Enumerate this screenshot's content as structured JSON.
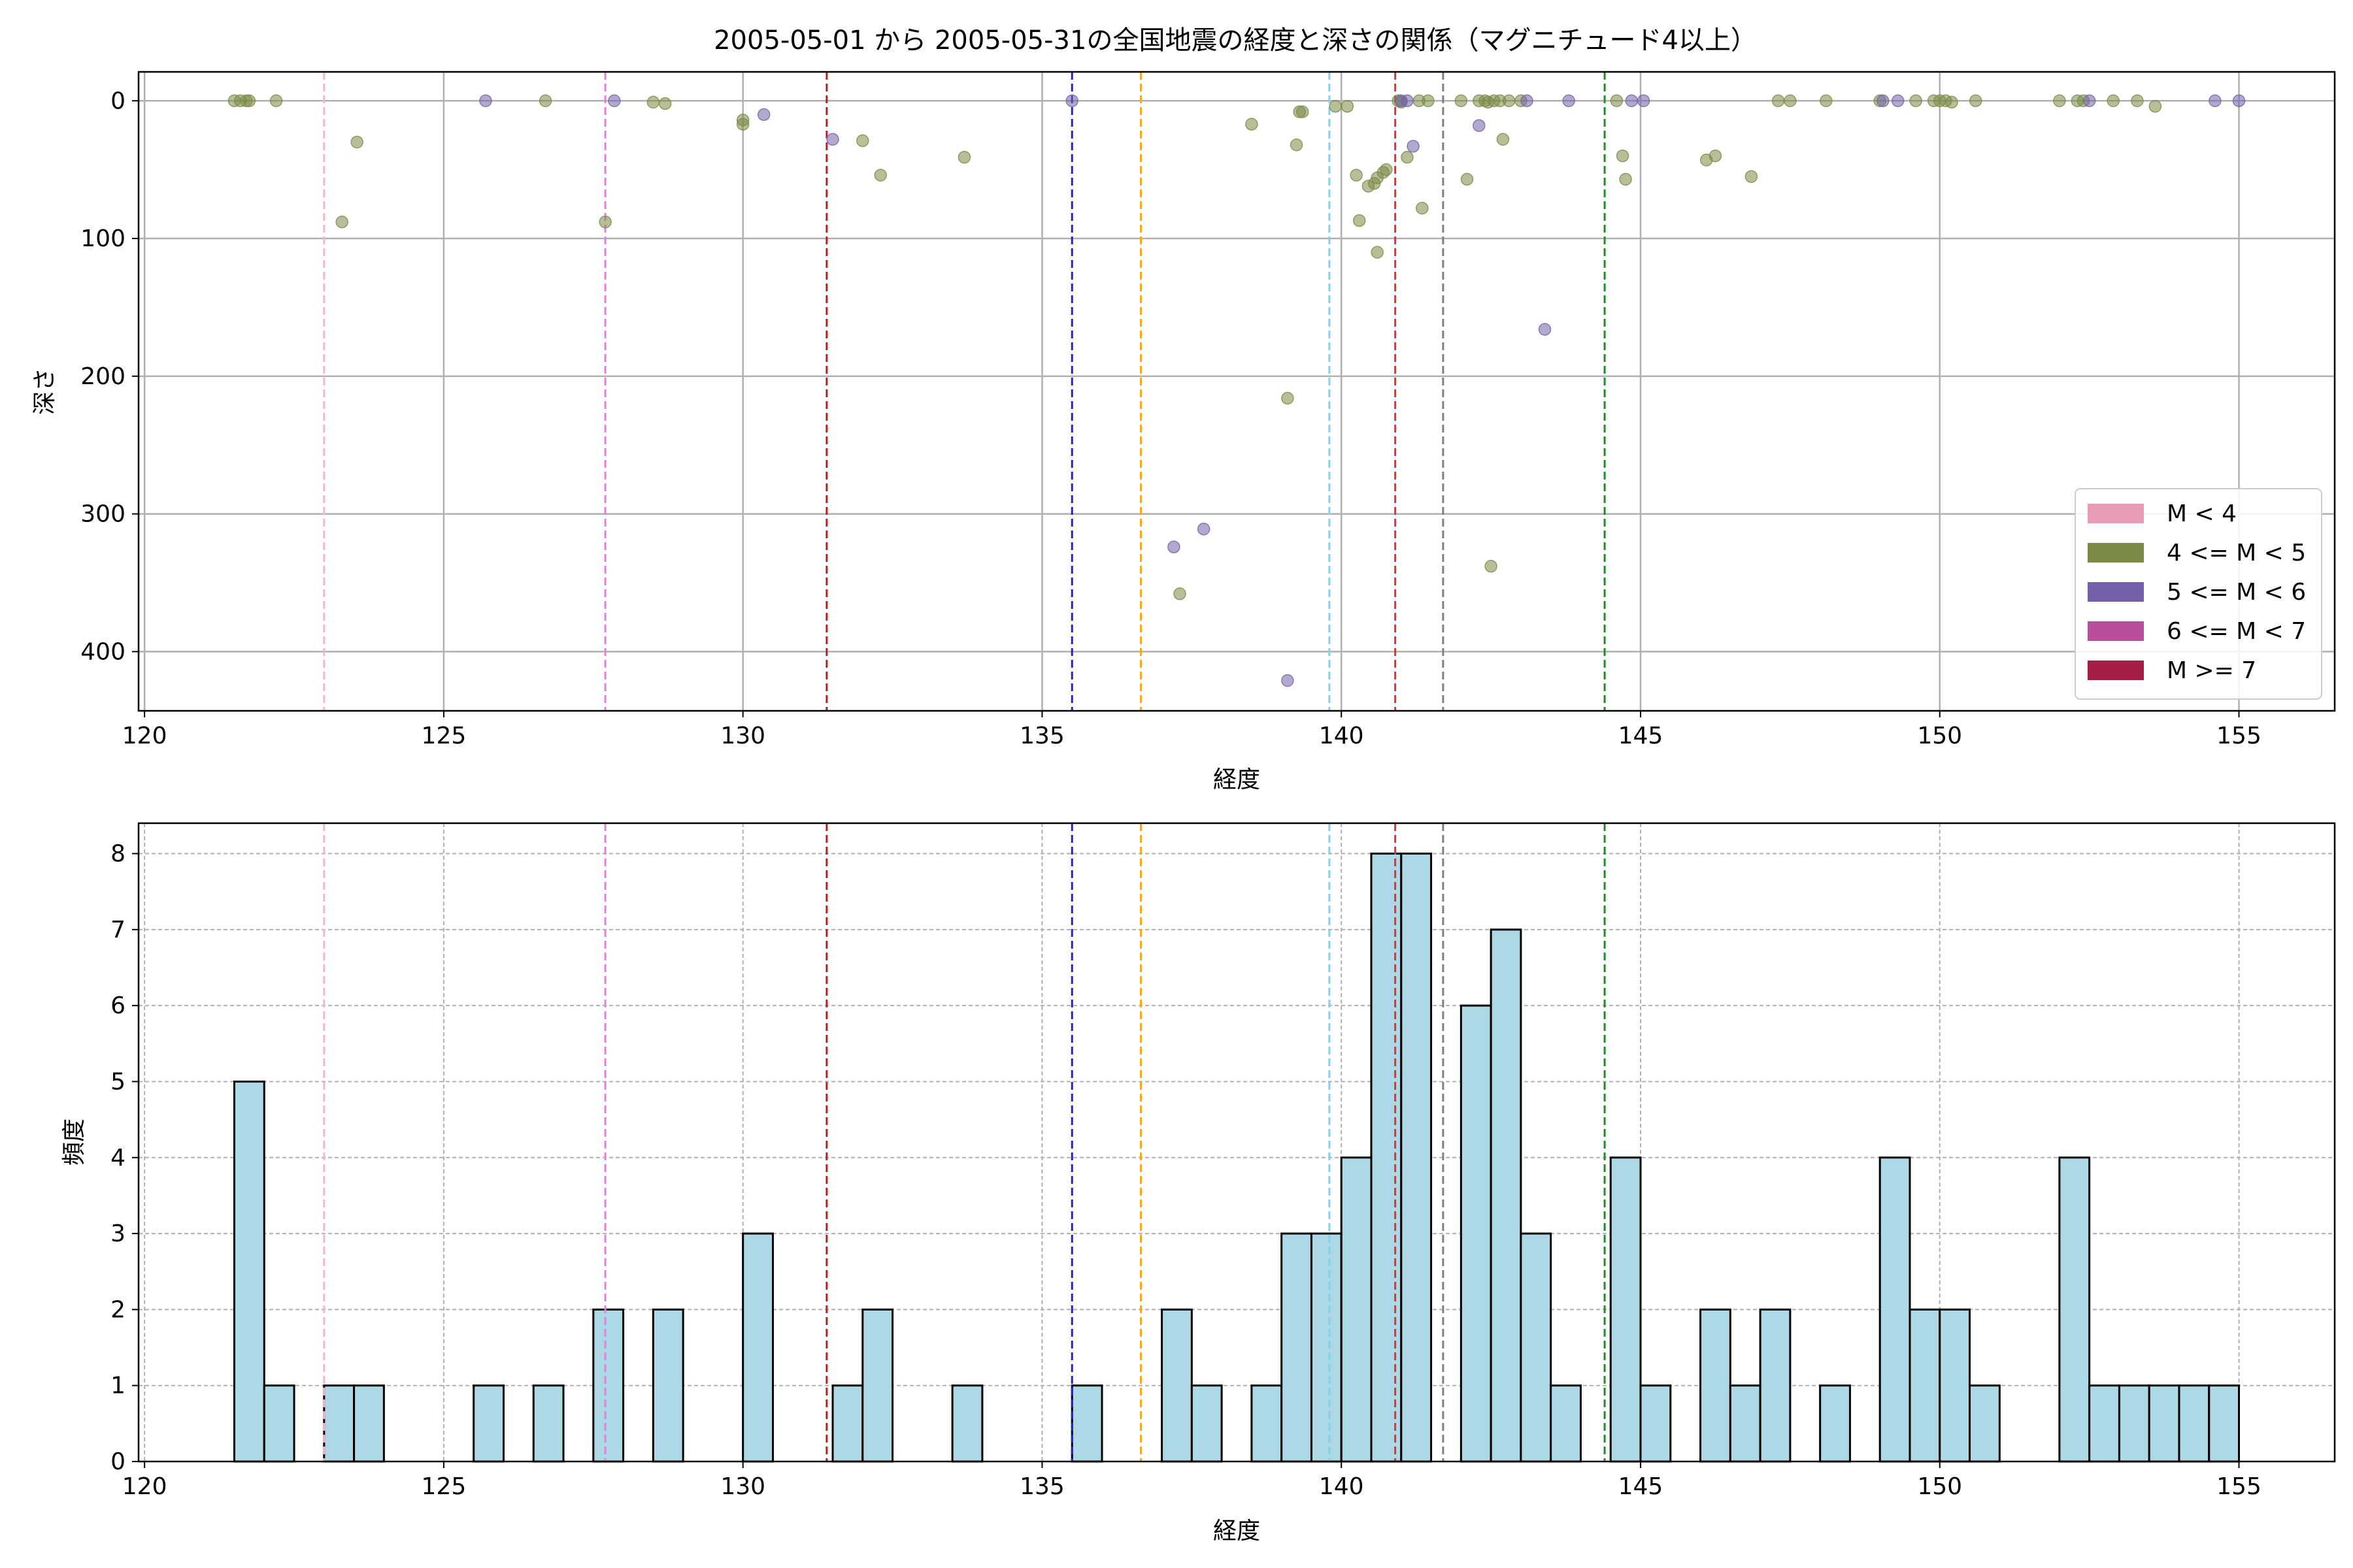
{
  "figure_title": "2005-05-01 から 2005-05-31の全国地震の経度と深さの関係（マグニチュード4以上）",
  "chart_data": [
    {
      "type": "scatter",
      "title": "2005-05-01 から 2005-05-31の全国地震の経度と深さの関係（マグニチュード4以上）",
      "xlabel": "経度",
      "ylabel": "深さ",
      "xlim": [
        119.9,
        156.6
      ],
      "ylim": [
        443,
        -21
      ],
      "y_inverted": true,
      "xticks": [
        120,
        125,
        130,
        135,
        140,
        145,
        150,
        155
      ],
      "yticks": [
        0,
        100,
        200,
        300,
        400
      ],
      "grid": true,
      "legend_placement": "lower-right",
      "legend": [
        {
          "label": "M < 4",
          "color": "#e89cb6"
        },
        {
          "label": "4 <= M < 5",
          "color": "#7b8b45"
        },
        {
          "label": "5 <= M < 6",
          "color": "#7460a8"
        },
        {
          "label": "6 <= M < 7",
          "color": "#b84f9d"
        },
        {
          "label": "M >= 7",
          "color": "#a31d44"
        }
      ],
      "reference_lines": [
        {
          "x": 123.0,
          "color": "#f4b6c8"
        },
        {
          "x": 127.7,
          "color": "#e97ee0"
        },
        {
          "x": 131.4,
          "color": "#b22222"
        },
        {
          "x": 135.5,
          "color": "#1f1fe0"
        },
        {
          "x": 136.65,
          "color": "#f5a623"
        },
        {
          "x": 139.8,
          "color": "#87ceeb"
        },
        {
          "x": 140.9,
          "color": "#e8302a"
        },
        {
          "x": 141.7,
          "color": "#808080"
        },
        {
          "x": 144.4,
          "color": "#228b22"
        }
      ],
      "series": [
        {
          "name": "4 <= M < 5",
          "color": "#7b8b45",
          "points": [
            [
              121.5,
              0
            ],
            [
              121.6,
              0
            ],
            [
              121.7,
              0
            ],
            [
              121.75,
              0
            ],
            [
              122.2,
              0
            ],
            [
              123.3,
              88
            ],
            [
              123.55,
              30
            ],
            [
              126.7,
              0
            ],
            [
              127.7,
              88
            ],
            [
              128.5,
              1
            ],
            [
              128.7,
              2
            ],
            [
              130.0,
              14
            ],
            [
              130.0,
              17
            ],
            [
              132.0,
              29
            ],
            [
              132.3,
              54
            ],
            [
              133.7,
              41
            ],
            [
              138.5,
              17
            ],
            [
              139.25,
              32
            ],
            [
              139.3,
              8
            ],
            [
              139.35,
              8
            ],
            [
              139.1,
              216
            ],
            [
              137.3,
              358
            ],
            [
              139.9,
              4
            ],
            [
              140.1,
              4
            ],
            [
              140.25,
              54
            ],
            [
              140.3,
              87
            ],
            [
              140.45,
              62
            ],
            [
              140.55,
              60
            ],
            [
              140.6,
              56
            ],
            [
              140.7,
              52
            ],
            [
              140.75,
              50
            ],
            [
              140.6,
              110
            ],
            [
              140.95,
              0
            ],
            [
              141.0,
              1
            ],
            [
              141.1,
              41
            ],
            [
              141.3,
              0
            ],
            [
              141.35,
              78
            ],
            [
              141.45,
              0
            ],
            [
              142.0,
              0
            ],
            [
              142.1,
              57
            ],
            [
              142.3,
              0
            ],
            [
              142.4,
              0
            ],
            [
              142.45,
              1
            ],
            [
              142.55,
              0
            ],
            [
              142.7,
              28
            ],
            [
              142.65,
              0
            ],
            [
              142.8,
              0
            ],
            [
              143.0,
              0
            ],
            [
              142.5,
              338
            ],
            [
              144.6,
              0
            ],
            [
              144.7,
              40
            ],
            [
              144.75,
              57
            ],
            [
              146.1,
              43
            ],
            [
              146.25,
              40
            ],
            [
              146.85,
              55
            ],
            [
              147.3,
              0
            ],
            [
              147.5,
              0
            ],
            [
              148.1,
              0
            ],
            [
              149.0,
              0
            ],
            [
              149.6,
              0
            ],
            [
              149.9,
              0
            ],
            [
              150.0,
              0
            ],
            [
              150.1,
              0
            ],
            [
              150.2,
              1
            ],
            [
              150.6,
              0
            ],
            [
              152.0,
              0
            ],
            [
              152.3,
              0
            ],
            [
              152.4,
              0
            ],
            [
              152.9,
              0
            ],
            [
              153.3,
              0
            ],
            [
              153.6,
              4
            ]
          ]
        },
        {
          "name": "5 <= M < 6",
          "color": "#7460a8",
          "points": [
            [
              125.7,
              0
            ],
            [
              127.85,
              0
            ],
            [
              130.35,
              10
            ],
            [
              131.5,
              28
            ],
            [
              135.5,
              0
            ],
            [
              137.2,
              324
            ],
            [
              137.7,
              311
            ],
            [
              139.1,
              421
            ],
            [
              141.0,
              0
            ],
            [
              141.1,
              0
            ],
            [
              141.2,
              33
            ],
            [
              142.3,
              18
            ],
            [
              143.1,
              0
            ],
            [
              143.4,
              166
            ],
            [
              143.8,
              0
            ],
            [
              144.85,
              0
            ],
            [
              145.05,
              0
            ],
            [
              149.05,
              0
            ],
            [
              149.3,
              0
            ],
            [
              152.5,
              0
            ],
            [
              154.6,
              0
            ],
            [
              155.0,
              0
            ]
          ]
        }
      ]
    },
    {
      "type": "bar",
      "title": "",
      "xlabel": "経度",
      "ylabel": "頻度",
      "xlim": [
        119.9,
        156.6
      ],
      "ylim": [
        0,
        8.4
      ],
      "xticks": [
        120,
        125,
        130,
        135,
        140,
        145,
        150,
        155
      ],
      "yticks": [
        0,
        1,
        2,
        3,
        4,
        5,
        6,
        7,
        8
      ],
      "grid": true,
      "bin_width": 0.5,
      "bar_color": "#add8e6",
      "reference_lines": [
        {
          "x": 123.0,
          "color": "#f4b6c8"
        },
        {
          "x": 127.7,
          "color": "#e97ee0"
        },
        {
          "x": 131.4,
          "color": "#b22222"
        },
        {
          "x": 135.5,
          "color": "#1f1fe0"
        },
        {
          "x": 136.65,
          "color": "#f5a623"
        },
        {
          "x": 139.8,
          "color": "#87ceeb"
        },
        {
          "x": 140.9,
          "color": "#e8302a"
        },
        {
          "x": 141.7,
          "color": "#808080"
        },
        {
          "x": 144.4,
          "color": "#228b22"
        }
      ],
      "bins": [
        [
          121.5,
          5
        ],
        [
          122.0,
          1
        ],
        [
          123.0,
          1
        ],
        [
          123.5,
          1
        ],
        [
          125.5,
          1
        ],
        [
          126.5,
          1
        ],
        [
          127.5,
          2
        ],
        [
          128.5,
          2
        ],
        [
          130.0,
          3
        ],
        [
          131.5,
          1
        ],
        [
          132.0,
          2
        ],
        [
          133.5,
          1
        ],
        [
          135.5,
          1
        ],
        [
          137.0,
          2
        ],
        [
          137.5,
          1
        ],
        [
          138.5,
          1
        ],
        [
          139.0,
          3
        ],
        [
          139.5,
          3
        ],
        [
          140.0,
          4
        ],
        [
          140.5,
          8
        ],
        [
          141.0,
          8
        ],
        [
          142.0,
          6
        ],
        [
          142.5,
          7
        ],
        [
          143.0,
          3
        ],
        [
          143.5,
          1
        ],
        [
          144.5,
          4
        ],
        [
          145.0,
          1
        ],
        [
          146.0,
          2
        ],
        [
          146.5,
          1
        ],
        [
          147.0,
          2
        ],
        [
          148.0,
          1
        ],
        [
          149.0,
          4
        ],
        [
          149.5,
          2
        ],
        [
          150.0,
          2
        ],
        [
          150.5,
          1
        ],
        [
          152.0,
          4
        ],
        [
          152.5,
          1
        ],
        [
          153.0,
          1
        ],
        [
          153.5,
          1
        ],
        [
          154.0,
          1
        ],
        [
          154.5,
          1
        ]
      ]
    }
  ]
}
